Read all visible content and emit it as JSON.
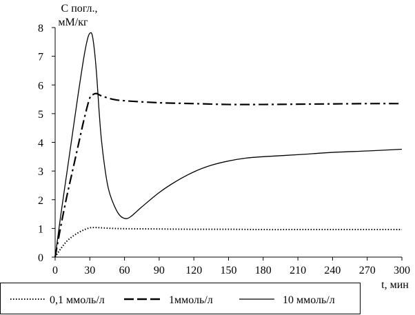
{
  "chart_data": {
    "type": "line",
    "title": "",
    "ylabel_line1": "C погл.,",
    "ylabel_line2": "мМ/кг",
    "xlabel": "t, мин",
    "xlim": [
      0,
      300
    ],
    "ylim": [
      0,
      8
    ],
    "xticks": [
      0,
      30,
      60,
      90,
      120,
      150,
      180,
      210,
      240,
      270,
      300
    ],
    "yticks": [
      0,
      1,
      2,
      3,
      4,
      5,
      6,
      7,
      8
    ],
    "xtick_labels": [
      "0",
      "30",
      "60",
      "90",
      "120",
      "150",
      "180",
      "210",
      "240",
      "270",
      "300"
    ],
    "ytick_labels": [
      "0",
      "1",
      "2",
      "3",
      "4",
      "5",
      "6",
      "7",
      "8"
    ],
    "grid": false,
    "legend_position": "bottom",
    "series": [
      {
        "name": "0,1 ммоль/л",
        "style": "dotted",
        "points": [
          [
            0,
            0
          ],
          [
            5,
            0.3
          ],
          [
            10,
            0.55
          ],
          [
            15,
            0.72
          ],
          [
            20,
            0.85
          ],
          [
            25,
            0.95
          ],
          [
            30,
            1.02
          ],
          [
            35,
            1.03
          ],
          [
            40,
            1.02
          ],
          [
            50,
            1.0
          ],
          [
            60,
            0.99
          ],
          [
            90,
            0.98
          ],
          [
            120,
            0.97
          ],
          [
            150,
            0.97
          ],
          [
            180,
            0.96
          ],
          [
            210,
            0.96
          ],
          [
            240,
            0.96
          ],
          [
            270,
            0.96
          ],
          [
            300,
            0.96
          ]
        ]
      },
      {
        "name": "1ммоль/л",
        "style": "dash-dot",
        "points": [
          [
            0,
            0
          ],
          [
            5,
            1.1
          ],
          [
            10,
            2.1
          ],
          [
            15,
            3.0
          ],
          [
            20,
            3.9
          ],
          [
            25,
            4.8
          ],
          [
            30,
            5.55
          ],
          [
            33,
            5.67
          ],
          [
            36,
            5.7
          ],
          [
            40,
            5.62
          ],
          [
            50,
            5.5
          ],
          [
            60,
            5.45
          ],
          [
            90,
            5.38
          ],
          [
            120,
            5.35
          ],
          [
            150,
            5.32
          ],
          [
            180,
            5.32
          ],
          [
            210,
            5.33
          ],
          [
            240,
            5.34
          ],
          [
            270,
            5.35
          ],
          [
            300,
            5.35
          ]
        ]
      },
      {
        "name": "10 ммоль/л",
        "style": "solid",
        "points": [
          [
            0,
            0
          ],
          [
            5,
            1.5
          ],
          [
            10,
            2.9
          ],
          [
            15,
            4.3
          ],
          [
            20,
            5.7
          ],
          [
            25,
            7.0
          ],
          [
            28,
            7.6
          ],
          [
            30,
            7.8
          ],
          [
            32,
            7.75
          ],
          [
            34,
            7.2
          ],
          [
            36,
            6.3
          ],
          [
            38,
            5.1
          ],
          [
            40,
            4.1
          ],
          [
            43,
            3.1
          ],
          [
            46,
            2.4
          ],
          [
            50,
            1.9
          ],
          [
            55,
            1.5
          ],
          [
            60,
            1.35
          ],
          [
            65,
            1.4
          ],
          [
            75,
            1.75
          ],
          [
            90,
            2.25
          ],
          [
            105,
            2.65
          ],
          [
            120,
            2.97
          ],
          [
            135,
            3.2
          ],
          [
            150,
            3.35
          ],
          [
            165,
            3.45
          ],
          [
            180,
            3.5
          ],
          [
            210,
            3.57
          ],
          [
            240,
            3.65
          ],
          [
            270,
            3.7
          ],
          [
            300,
            3.76
          ]
        ]
      }
    ]
  }
}
